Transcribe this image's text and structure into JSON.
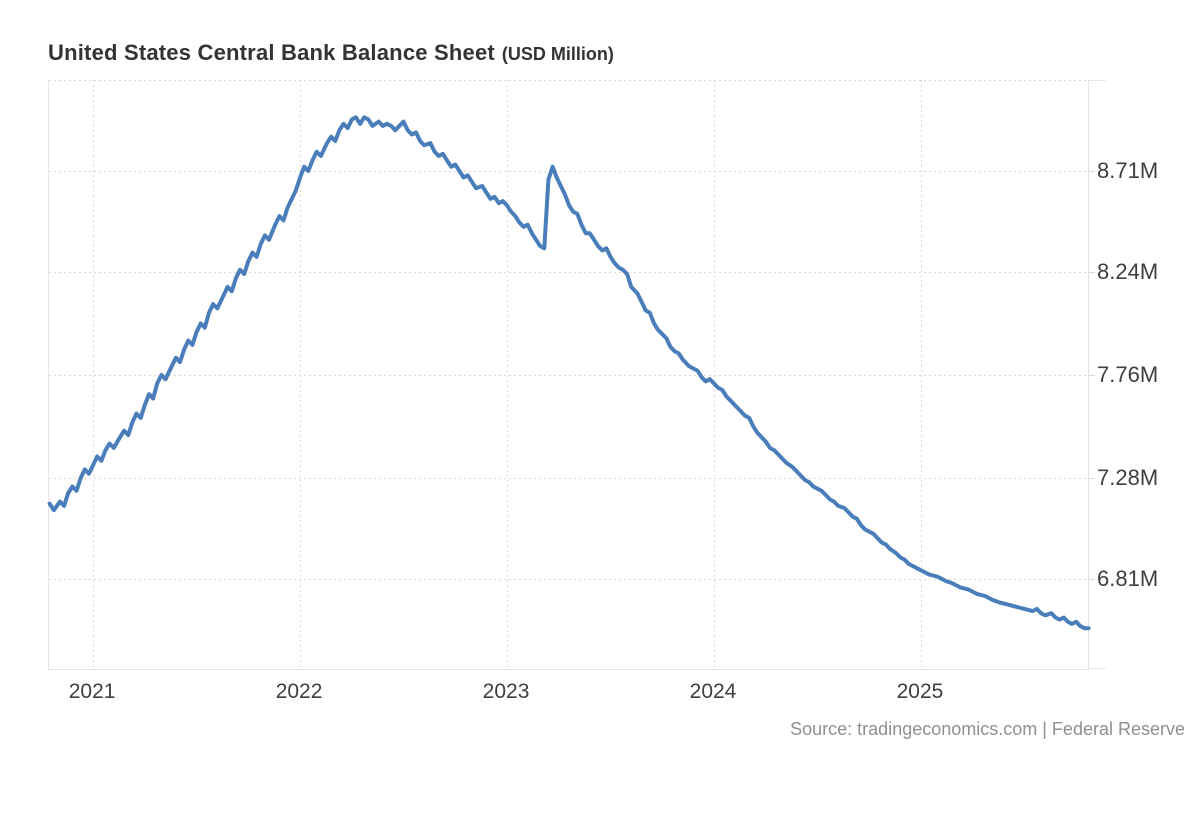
{
  "header": {
    "title": "United States Central Bank Balance Sheet",
    "subtitle": "(USD Million)"
  },
  "footer": {
    "source": "Source: tradingeconomics.com | Federal Reserve"
  },
  "chart_data": {
    "type": "line",
    "title": "United States Central Bank Balance Sheet",
    "units": "USD Million",
    "legend": "none",
    "grid": "dotted",
    "colors": {
      "line": "#4a7ebb",
      "grid": "#d9d9d9",
      "border": "#e5e5e5",
      "labels": "#3f3f3f",
      "title": "#333333",
      "source": "#8f8f8f"
    },
    "x_axis": {
      "min": 2020.787,
      "max": 2025.807,
      "ticks": [
        {
          "value": 2021,
          "label": "2021"
        },
        {
          "value": 2022,
          "label": "2022"
        },
        {
          "value": 2023,
          "label": "2023"
        },
        {
          "value": 2024,
          "label": "2024"
        },
        {
          "value": 2025,
          "label": "2025"
        }
      ]
    },
    "y_axis": {
      "min": 6.39,
      "max": 9.134,
      "ticks": [
        {
          "value": 8.71,
          "label": "8.71M"
        },
        {
          "value": 8.24,
          "label": "8.24M"
        },
        {
          "value": 7.76,
          "label": "7.76M"
        },
        {
          "value": 7.28,
          "label": "7.28M"
        },
        {
          "value": 6.81,
          "label": "6.81M"
        }
      ]
    },
    "series": [
      {
        "name": "Central Bank Balance Sheet",
        "points": [
          [
            2020.79,
            7.16
          ],
          [
            2020.81,
            7.13
          ],
          [
            2020.84,
            7.17
          ],
          [
            2020.86,
            7.15
          ],
          [
            2020.88,
            7.21
          ],
          [
            2020.9,
            7.24
          ],
          [
            2020.92,
            7.22
          ],
          [
            2020.94,
            7.28
          ],
          [
            2020.96,
            7.32
          ],
          [
            2020.98,
            7.3
          ],
          [
            2021.0,
            7.34
          ],
          [
            2021.02,
            7.38
          ],
          [
            2021.04,
            7.36
          ],
          [
            2021.06,
            7.41
          ],
          [
            2021.08,
            7.44
          ],
          [
            2021.1,
            7.42
          ],
          [
            2021.13,
            7.47
          ],
          [
            2021.15,
            7.5
          ],
          [
            2021.17,
            7.48
          ],
          [
            2021.19,
            7.54
          ],
          [
            2021.21,
            7.58
          ],
          [
            2021.23,
            7.56
          ],
          [
            2021.25,
            7.62
          ],
          [
            2021.27,
            7.67
          ],
          [
            2021.29,
            7.65
          ],
          [
            2021.31,
            7.72
          ],
          [
            2021.33,
            7.76
          ],
          [
            2021.35,
            7.74
          ],
          [
            2021.38,
            7.8
          ],
          [
            2021.4,
            7.84
          ],
          [
            2021.42,
            7.82
          ],
          [
            2021.44,
            7.88
          ],
          [
            2021.46,
            7.92
          ],
          [
            2021.48,
            7.9
          ],
          [
            2021.5,
            7.96
          ],
          [
            2021.52,
            8.0
          ],
          [
            2021.54,
            7.98
          ],
          [
            2021.56,
            8.05
          ],
          [
            2021.58,
            8.09
          ],
          [
            2021.6,
            8.07
          ],
          [
            2021.63,
            8.13
          ],
          [
            2021.65,
            8.17
          ],
          [
            2021.67,
            8.15
          ],
          [
            2021.69,
            8.21
          ],
          [
            2021.71,
            8.25
          ],
          [
            2021.73,
            8.23
          ],
          [
            2021.75,
            8.29
          ],
          [
            2021.77,
            8.33
          ],
          [
            2021.79,
            8.31
          ],
          [
            2021.81,
            8.37
          ],
          [
            2021.83,
            8.41
          ],
          [
            2021.85,
            8.39
          ],
          [
            2021.88,
            8.46
          ],
          [
            2021.9,
            8.5
          ],
          [
            2021.92,
            8.48
          ],
          [
            2021.94,
            8.54
          ],
          [
            2021.96,
            8.58
          ],
          [
            2021.98,
            8.62
          ],
          [
            2022.0,
            8.68
          ],
          [
            2022.02,
            8.73
          ],
          [
            2022.04,
            8.71
          ],
          [
            2022.06,
            8.76
          ],
          [
            2022.08,
            8.8
          ],
          [
            2022.1,
            8.78
          ],
          [
            2022.13,
            8.84
          ],
          [
            2022.15,
            8.87
          ],
          [
            2022.17,
            8.85
          ],
          [
            2022.19,
            8.9
          ],
          [
            2022.21,
            8.93
          ],
          [
            2022.23,
            8.91
          ],
          [
            2022.25,
            8.95
          ],
          [
            2022.27,
            8.96
          ],
          [
            2022.29,
            8.93
          ],
          [
            2022.31,
            8.96
          ],
          [
            2022.33,
            8.95
          ],
          [
            2022.35,
            8.92
          ],
          [
            2022.38,
            8.94
          ],
          [
            2022.4,
            8.92
          ],
          [
            2022.42,
            8.93
          ],
          [
            2022.44,
            8.92
          ],
          [
            2022.46,
            8.9
          ],
          [
            2022.48,
            8.92
          ],
          [
            2022.5,
            8.94
          ],
          [
            2022.52,
            8.9
          ],
          [
            2022.54,
            8.88
          ],
          [
            2022.56,
            8.89
          ],
          [
            2022.58,
            8.85
          ],
          [
            2022.6,
            8.83
          ],
          [
            2022.63,
            8.84
          ],
          [
            2022.65,
            8.8
          ],
          [
            2022.67,
            8.78
          ],
          [
            2022.69,
            8.79
          ],
          [
            2022.71,
            8.76
          ],
          [
            2022.73,
            8.73
          ],
          [
            2022.75,
            8.74
          ],
          [
            2022.77,
            8.71
          ],
          [
            2022.79,
            8.68
          ],
          [
            2022.81,
            8.69
          ],
          [
            2022.83,
            8.66
          ],
          [
            2022.85,
            8.63
          ],
          [
            2022.88,
            8.64
          ],
          [
            2022.9,
            8.61
          ],
          [
            2022.92,
            8.58
          ],
          [
            2022.94,
            8.59
          ],
          [
            2022.96,
            8.56
          ],
          [
            2022.98,
            8.57
          ],
          [
            2023.0,
            8.55
          ],
          [
            2023.02,
            8.52
          ],
          [
            2023.04,
            8.5
          ],
          [
            2023.06,
            8.47
          ],
          [
            2023.08,
            8.45
          ],
          [
            2023.1,
            8.46
          ],
          [
            2023.12,
            8.42
          ],
          [
            2023.14,
            8.39
          ],
          [
            2023.16,
            8.36
          ],
          [
            2023.18,
            8.35
          ],
          [
            2023.2,
            8.67
          ],
          [
            2023.22,
            8.73
          ],
          [
            2023.24,
            8.68
          ],
          [
            2023.26,
            8.64
          ],
          [
            2023.28,
            8.6
          ],
          [
            2023.3,
            8.55
          ],
          [
            2023.32,
            8.52
          ],
          [
            2023.34,
            8.51
          ],
          [
            2023.36,
            8.46
          ],
          [
            2023.38,
            8.42
          ],
          [
            2023.4,
            8.42
          ],
          [
            2023.42,
            8.39
          ],
          [
            2023.44,
            8.36
          ],
          [
            2023.46,
            8.34
          ],
          [
            2023.48,
            8.35
          ],
          [
            2023.5,
            8.31
          ],
          [
            2023.52,
            8.28
          ],
          [
            2023.54,
            8.26
          ],
          [
            2023.56,
            8.25
          ],
          [
            2023.58,
            8.23
          ],
          [
            2023.6,
            8.17
          ],
          [
            2023.63,
            8.14
          ],
          [
            2023.65,
            8.1
          ],
          [
            2023.67,
            8.06
          ],
          [
            2023.69,
            8.05
          ],
          [
            2023.71,
            8.0
          ],
          [
            2023.73,
            7.97
          ],
          [
            2023.75,
            7.95
          ],
          [
            2023.77,
            7.93
          ],
          [
            2023.79,
            7.89
          ],
          [
            2023.81,
            7.87
          ],
          [
            2023.83,
            7.86
          ],
          [
            2023.85,
            7.83
          ],
          [
            2023.88,
            7.8
          ],
          [
            2023.9,
            7.79
          ],
          [
            2023.92,
            7.78
          ],
          [
            2023.94,
            7.75
          ],
          [
            2023.96,
            7.73
          ],
          [
            2023.98,
            7.74
          ],
          [
            2024.0,
            7.72
          ],
          [
            2024.02,
            7.7
          ],
          [
            2024.04,
            7.69
          ],
          [
            2024.06,
            7.66
          ],
          [
            2024.08,
            7.64
          ],
          [
            2024.1,
            7.62
          ],
          [
            2024.13,
            7.59
          ],
          [
            2024.15,
            7.57
          ],
          [
            2024.17,
            7.56
          ],
          [
            2024.19,
            7.52
          ],
          [
            2024.21,
            7.49
          ],
          [
            2024.23,
            7.47
          ],
          [
            2024.25,
            7.45
          ],
          [
            2024.27,
            7.42
          ],
          [
            2024.29,
            7.41
          ],
          [
            2024.31,
            7.39
          ],
          [
            2024.33,
            7.37
          ],
          [
            2024.35,
            7.35
          ],
          [
            2024.38,
            7.33
          ],
          [
            2024.4,
            7.31
          ],
          [
            2024.42,
            7.29
          ],
          [
            2024.44,
            7.27
          ],
          [
            2024.46,
            7.26
          ],
          [
            2024.48,
            7.24
          ],
          [
            2024.5,
            7.23
          ],
          [
            2024.52,
            7.22
          ],
          [
            2024.54,
            7.2
          ],
          [
            2024.56,
            7.18
          ],
          [
            2024.58,
            7.17
          ],
          [
            2024.6,
            7.15
          ],
          [
            2024.63,
            7.14
          ],
          [
            2024.65,
            7.12
          ],
          [
            2024.67,
            7.1
          ],
          [
            2024.69,
            7.09
          ],
          [
            2024.71,
            7.06
          ],
          [
            2024.73,
            7.04
          ],
          [
            2024.75,
            7.03
          ],
          [
            2024.77,
            7.02
          ],
          [
            2024.79,
            7.0
          ],
          [
            2024.81,
            6.98
          ],
          [
            2024.83,
            6.97
          ],
          [
            2024.85,
            6.95
          ],
          [
            2024.88,
            6.93
          ],
          [
            2024.9,
            6.91
          ],
          [
            2024.92,
            6.9
          ],
          [
            2024.94,
            6.88
          ],
          [
            2024.96,
            6.87
          ],
          [
            2024.98,
            6.86
          ],
          [
            2025.0,
            6.85
          ],
          [
            2025.04,
            6.83
          ],
          [
            2025.08,
            6.82
          ],
          [
            2025.12,
            6.8
          ],
          [
            2025.15,
            6.79
          ],
          [
            2025.19,
            6.77
          ],
          [
            2025.23,
            6.76
          ],
          [
            2025.27,
            6.74
          ],
          [
            2025.31,
            6.73
          ],
          [
            2025.35,
            6.71
          ],
          [
            2025.38,
            6.7
          ],
          [
            2025.42,
            6.69
          ],
          [
            2025.46,
            6.68
          ],
          [
            2025.5,
            6.67
          ],
          [
            2025.54,
            6.66
          ],
          [
            2025.56,
            6.67
          ],
          [
            2025.58,
            6.65
          ],
          [
            2025.6,
            6.64
          ],
          [
            2025.63,
            6.65
          ],
          [
            2025.65,
            6.63
          ],
          [
            2025.67,
            6.62
          ],
          [
            2025.69,
            6.63
          ],
          [
            2025.71,
            6.61
          ],
          [
            2025.73,
            6.6
          ],
          [
            2025.75,
            6.61
          ],
          [
            2025.77,
            6.59
          ],
          [
            2025.79,
            6.58
          ],
          [
            2025.81,
            6.58
          ]
        ]
      }
    ]
  }
}
